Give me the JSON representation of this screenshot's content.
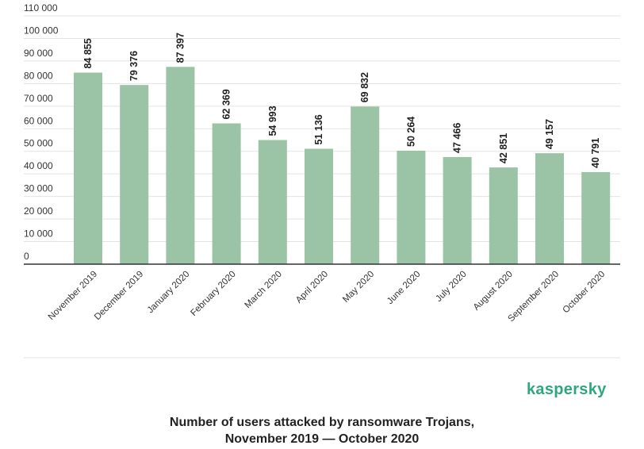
{
  "chart_data": {
    "type": "bar",
    "categories": [
      "November 2019",
      "December 2019",
      "January 2020",
      "February 2020",
      "March 2020",
      "April 2020",
      "May 2020",
      "June 2020",
      "July 2020",
      "August 2020",
      "September 2020",
      "October 2020"
    ],
    "values": [
      84855,
      79376,
      87397,
      62369,
      54993,
      51136,
      69832,
      50264,
      47466,
      42851,
      49157,
      40791
    ],
    "value_labels": [
      "84 855",
      "79 376",
      "87 397",
      "62 369",
      "54 993",
      "51 136",
      "69 832",
      "50 264",
      "47 466",
      "42 851",
      "49 157",
      "40 791"
    ],
    "ylim": [
      0,
      110000
    ],
    "yticks": [
      0,
      10000,
      20000,
      30000,
      40000,
      50000,
      60000,
      70000,
      80000,
      90000,
      100000,
      110000
    ],
    "ytick_labels": [
      "0",
      "10 000",
      "20 000",
      "30 000",
      "40 000",
      "50 000",
      "60 000",
      "70 000",
      "80 000",
      "90 000",
      "100 000",
      "110 000"
    ],
    "title": "Number of users attacked by ransomware Trojans, November 2019 — October 2020",
    "xlabel": "",
    "ylabel": "",
    "grid": true,
    "bar_color": "#9bc4a6"
  },
  "brand": {
    "name": "kaspersky",
    "color": "#2fa77d"
  },
  "caption": {
    "line1": "Number of users attacked by ransomware Trojans,",
    "line2": "November 2019 — October 2020"
  }
}
